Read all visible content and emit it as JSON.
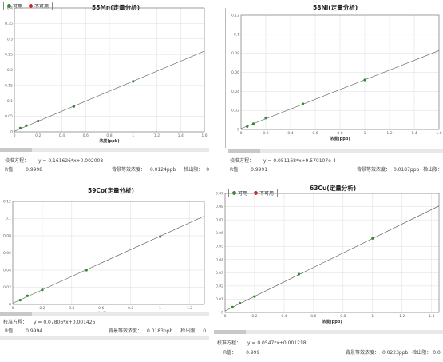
{
  "legend": {
    "usable": "可用",
    "unusable": "不可用",
    "usable_color": "#2e8b2e",
    "unusable_color": "#d42020"
  },
  "labels": {
    "equation": "校准方程：",
    "r_value": "R值：",
    "bec": "背景等效浓度：",
    "dl": "检出限："
  },
  "panels": [
    {
      "title": "55Mn(定量分析)",
      "xlabel": "浓度(ppb)",
      "equation": "y = 0.161626*x+0.002008",
      "r": "0.9998",
      "bec": "0.0124ppb",
      "dl": "0"
    },
    {
      "title": "58Ni(定量分析)",
      "xlabel": "浓度(ppb)",
      "equation": "y = 0.051168*x+9.570107e-4",
      "r": "0.9991",
      "bec": "0.0187ppb",
      "dl": "0"
    },
    {
      "title": "59Co(定量分析)",
      "xlabel": "浓度(ppb)",
      "equation": "y = 0.07806*x+0.001426",
      "r": "0.9994",
      "bec": "0.0183ppb",
      "dl": "0"
    },
    {
      "title": "63Cu(定量分析)",
      "xlabel": "浓度(ppb)",
      "equation": "y = 0.0547*x+0.001218",
      "r": "0.999",
      "bec": "0.0223ppb",
      "dl": "0.0"
    }
  ],
  "chart_data": [
    {
      "type": "scatter",
      "title": "55Mn(定量分析)",
      "xlabel": "浓度(ppb)",
      "ylabel": "",
      "xlim": [
        0,
        1.6
      ],
      "ylim": [
        0,
        0.4
      ],
      "xticks": [
        0,
        0.2,
        0.4,
        0.6,
        0.8,
        1,
        1.2,
        1.4,
        1.6
      ],
      "yticks": [
        0,
        0.05,
        0.1,
        0.15,
        0.2,
        0.25,
        0.3,
        0.35,
        0.4
      ],
      "x": [
        0.05,
        0.1,
        0.2,
        0.5,
        1.0
      ],
      "y": [
        0.012,
        0.02,
        0.035,
        0.082,
        0.163
      ],
      "fit": {
        "slope": 0.161626,
        "intercept": 0.002008
      }
    },
    {
      "type": "scatter",
      "title": "58Ni(定量分析)",
      "xlabel": "浓度(ppb)",
      "ylabel": "",
      "xlim": [
        0,
        1.6
      ],
      "ylim": [
        0,
        0.12
      ],
      "xticks": [
        0,
        0.2,
        0.4,
        0.6,
        0.8,
        1,
        1.2,
        1.4,
        1.6
      ],
      "yticks": [
        0,
        0.02,
        0.04,
        0.06,
        0.08,
        0.1,
        0.12
      ],
      "x": [
        0.05,
        0.1,
        0.2,
        0.5,
        1.0
      ],
      "y": [
        0.003,
        0.006,
        0.012,
        0.027,
        0.052
      ],
      "fit": {
        "slope": 0.051168,
        "intercept": 0.000957
      }
    },
    {
      "type": "scatter",
      "title": "59Co(定量分析)",
      "xlabel": "浓度(ppb)",
      "ylabel": "",
      "xlim": [
        0,
        1.3
      ],
      "ylim": [
        0,
        0.12
      ],
      "xticks": [
        0,
        0.2,
        0.4,
        0.6,
        0.8,
        1,
        1.2
      ],
      "yticks": [
        0,
        0.02,
        0.04,
        0.06,
        0.08,
        0.1,
        0.12
      ],
      "x": [
        0.05,
        0.1,
        0.2,
        0.5,
        1.0
      ],
      "y": [
        0.005,
        0.01,
        0.017,
        0.04,
        0.079
      ],
      "fit": {
        "slope": 0.07806,
        "intercept": 0.001426
      }
    },
    {
      "type": "scatter",
      "title": "63Cu(定量分析)",
      "xlabel": "浓度(ppb)",
      "ylabel": "",
      "xlim": [
        0,
        1.45
      ],
      "ylim": [
        0,
        0.09
      ],
      "xticks": [
        0,
        0.2,
        0.4,
        0.6,
        0.8,
        1,
        1.2,
        1.4
      ],
      "yticks": [
        0,
        0.01,
        0.02,
        0.03,
        0.04,
        0.05,
        0.06,
        0.07,
        0.08,
        0.09
      ],
      "x": [
        0.05,
        0.1,
        0.2,
        0.5,
        1.0
      ],
      "y": [
        0.004,
        0.007,
        0.012,
        0.029,
        0.056
      ],
      "fit": {
        "slope": 0.0547,
        "intercept": 0.001218
      }
    }
  ]
}
